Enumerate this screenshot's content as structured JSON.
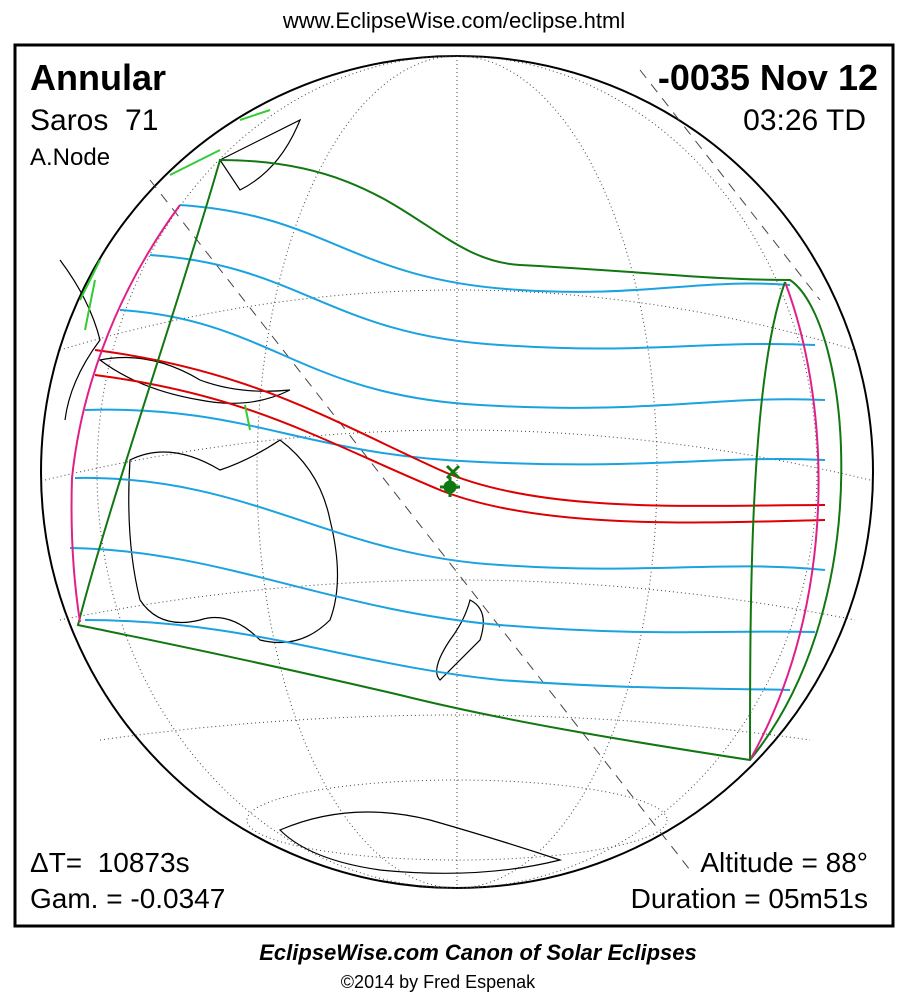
{
  "header": {
    "url": "www.EclipseWise.com/eclipse.html"
  },
  "eclipse": {
    "type": "Annular",
    "saros": "Saros  71",
    "node": "A.Node",
    "date": "-0035 Nov 12",
    "time": "03:26 TD",
    "delta_t": "ΔT=  10873s",
    "gamma": "Gam. = -0.0347",
    "altitude": "Altitude = 88°",
    "duration": "Duration = 05m51s"
  },
  "footer": {
    "title": "EclipseWise.com Canon of Solar Eclipses",
    "copyright": "©2014 by Fred Espenak"
  }
}
